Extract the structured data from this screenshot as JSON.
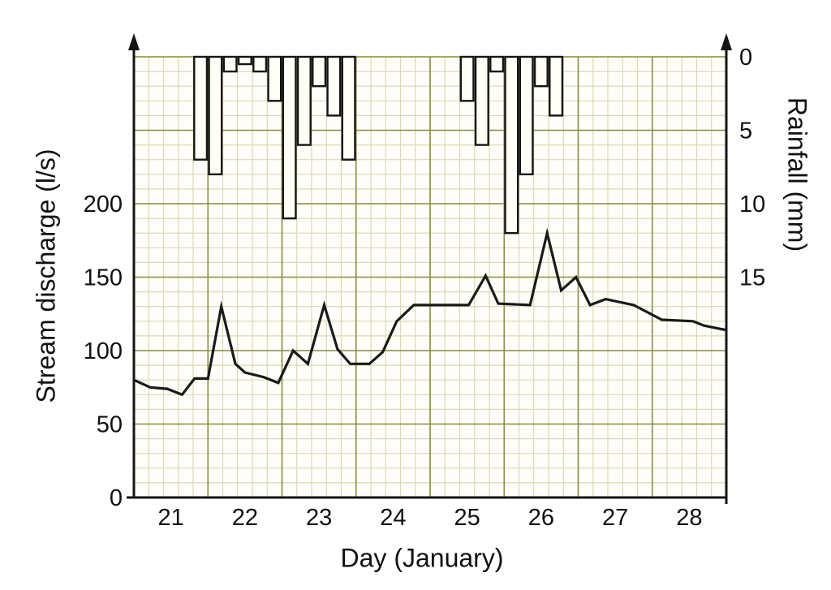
{
  "chart_data": {
    "type": "combo",
    "x_axis": {
      "label": "Day (January)",
      "ticks": [
        21,
        22,
        23,
        24,
        25,
        26,
        27,
        28
      ],
      "range": [
        20.5,
        28.5
      ]
    },
    "left_axis": {
      "label": "Stream discharge (l/s)",
      "ticks": [
        0,
        50,
        100,
        150,
        200
      ],
      "range": [
        0,
        300
      ]
    },
    "right_axis": {
      "label": "Rainfall (mm)",
      "ticks": [
        0,
        5,
        10,
        15
      ],
      "range": [
        0,
        30
      ],
      "direction": "inverted-from-top"
    },
    "grid": {
      "on": true,
      "minor_step_days": 0.2,
      "minor_step_discharge_ls": 10,
      "minor_step_rain_mm": 1,
      "major_step_days": 1,
      "major_step_discharge_ls": 50,
      "major_step_rain_mm": 5
    },
    "discharge_line": {
      "name": "Stream discharge (l/s)",
      "type": "line",
      "points": [
        [
          20.5,
          80
        ],
        [
          20.72,
          75
        ],
        [
          20.95,
          74
        ],
        [
          21.15,
          70
        ],
        [
          21.32,
          81
        ],
        [
          21.5,
          81
        ],
        [
          21.68,
          130
        ],
        [
          21.87,
          91
        ],
        [
          22.0,
          85
        ],
        [
          22.25,
          82
        ],
        [
          22.45,
          78
        ],
        [
          22.65,
          100
        ],
        [
          22.85,
          91
        ],
        [
          23.07,
          131
        ],
        [
          23.25,
          101
        ],
        [
          23.42,
          91
        ],
        [
          23.68,
          91
        ],
        [
          23.86,
          99
        ],
        [
          24.05,
          120
        ],
        [
          24.28,
          131
        ],
        [
          25.02,
          131
        ],
        [
          25.25,
          151
        ],
        [
          25.42,
          132
        ],
        [
          25.85,
          131
        ],
        [
          26.08,
          180
        ],
        [
          26.27,
          141
        ],
        [
          26.47,
          150
        ],
        [
          26.66,
          131
        ],
        [
          26.87,
          135
        ],
        [
          27.25,
          131
        ],
        [
          27.63,
          121
        ],
        [
          28.05,
          120
        ],
        [
          28.2,
          117
        ],
        [
          28.5,
          114
        ]
      ]
    },
    "rainfall_bars": {
      "name": "Rainfall (mm)",
      "type": "bar",
      "bar_width_days": 0.2,
      "bars": [
        {
          "day": 21.3,
          "mm": 7
        },
        {
          "day": 21.5,
          "mm": 8
        },
        {
          "day": 21.7,
          "mm": 1
        },
        {
          "day": 21.9,
          "mm": 0.5
        },
        {
          "day": 22.1,
          "mm": 1
        },
        {
          "day": 22.3,
          "mm": 3
        },
        {
          "day": 22.5,
          "mm": 11
        },
        {
          "day": 22.7,
          "mm": 6
        },
        {
          "day": 22.9,
          "mm": 2
        },
        {
          "day": 23.1,
          "mm": 4
        },
        {
          "day": 23.3,
          "mm": 7
        },
        {
          "day": 24.9,
          "mm": 3
        },
        {
          "day": 25.1,
          "mm": 6
        },
        {
          "day": 25.3,
          "mm": 1
        },
        {
          "day": 25.5,
          "mm": 12
        },
        {
          "day": 25.7,
          "mm": 8
        },
        {
          "day": 25.9,
          "mm": 2
        },
        {
          "day": 26.1,
          "mm": 4
        }
      ]
    }
  },
  "colors": {
    "background": "#ffffff",
    "plot_background": "#fffefa",
    "grid_minor": "#d9dab0",
    "grid_major": "#8b8d42",
    "axis": "#151515",
    "line": "#1a1a1a",
    "bar_fill": "#fffef7",
    "bar_stroke": "#151515",
    "text": "#111111"
  }
}
